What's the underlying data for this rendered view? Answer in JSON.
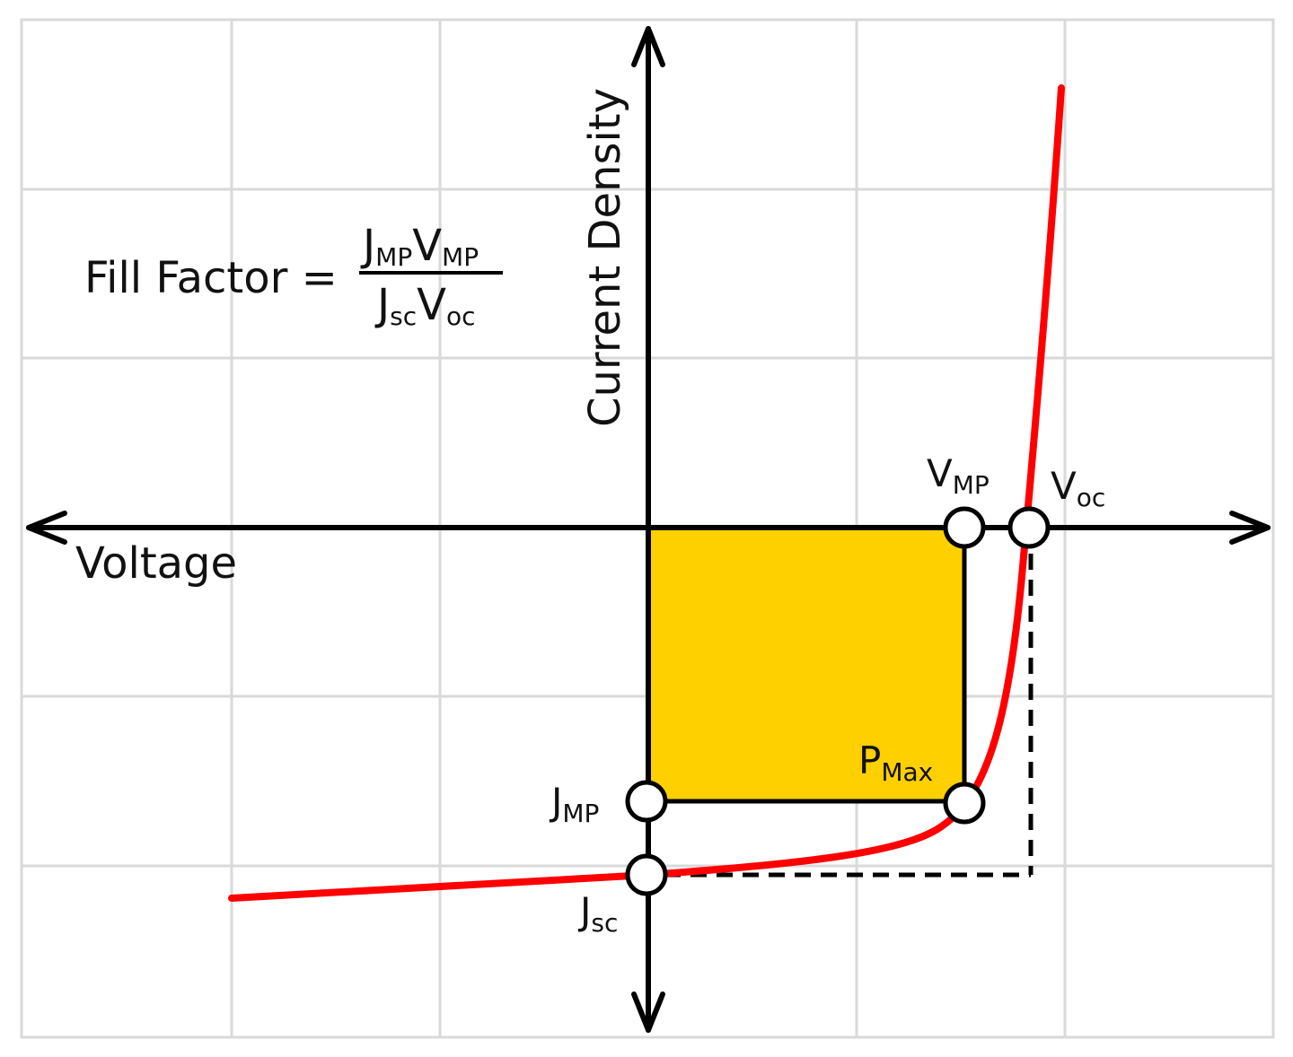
{
  "colors": {
    "grid": "#d9d9d9",
    "axis": "#000000",
    "curve": "#ff0000",
    "rect_fill": "#ffd000",
    "background": "#ffffff"
  },
  "formula": {
    "lhs": "Fill Factor =",
    "num_j": "J",
    "num_j_sub": "MP",
    "num_v": "V",
    "num_v_sub": "MP",
    "den_j": "J",
    "den_j_sub": "sc",
    "den_v": "V",
    "den_v_sub": "oc"
  },
  "axes": {
    "x_label": "Voltage",
    "y_label": "Current Density"
  },
  "points": {
    "vmp": {
      "main": "V",
      "sub": "MP"
    },
    "voc": {
      "main": "V",
      "sub": "oc"
    },
    "jmp": {
      "main": "J",
      "sub": "MP"
    },
    "jsc": {
      "main": "J",
      "sub": "sc"
    },
    "pmax": {
      "main": "P",
      "sub": "Max"
    }
  },
  "icons": {
    "arrow": "arrow-head-icon",
    "marker": "circle-marker-icon"
  }
}
